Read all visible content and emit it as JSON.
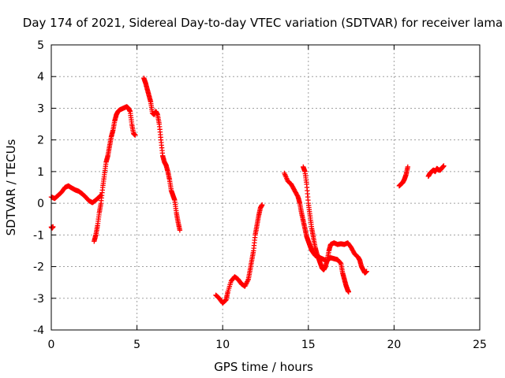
{
  "chart_data": {
    "type": "scatter",
    "title": "Day 174 of 2021, Sidereal Day-to-day VTEC variation (SDTVAR) for receiver lama",
    "xlabel": "GPS time / hours",
    "ylabel": "SDTVAR / TECUs",
    "xlim": [
      0,
      25
    ],
    "ylim": [
      -4,
      5
    ],
    "x_ticks": [
      0,
      5,
      10,
      15,
      20,
      25
    ],
    "y_ticks": [
      -4,
      -3,
      -2,
      -1,
      0,
      1,
      2,
      3,
      4,
      5
    ],
    "grid": true,
    "marker": "plus",
    "color": "#ff0000",
    "segments": [
      [
        [
          0.0,
          -0.75
        ],
        [
          0.05,
          -0.78
        ],
        [
          0.1,
          -0.74
        ]
      ],
      [
        [
          0.0,
          0.2
        ],
        [
          0.2,
          0.15
        ],
        [
          0.4,
          0.25
        ],
        [
          0.6,
          0.35
        ],
        [
          0.8,
          0.5
        ],
        [
          1.0,
          0.55
        ],
        [
          1.2,
          0.48
        ],
        [
          1.4,
          0.42
        ],
        [
          1.6,
          0.38
        ],
        [
          1.8,
          0.3
        ],
        [
          2.0,
          0.2
        ],
        [
          2.2,
          0.08
        ],
        [
          2.4,
          0.02
        ],
        [
          2.6,
          0.1
        ],
        [
          2.8,
          0.2
        ],
        [
          2.9,
          0.25
        ]
      ],
      [
        [
          2.5,
          -1.2
        ],
        [
          2.6,
          -1.0
        ],
        [
          2.7,
          -0.7
        ],
        [
          2.8,
          -0.3
        ],
        [
          2.9,
          0.0
        ],
        [
          3.0,
          0.5
        ],
        [
          3.1,
          0.9
        ],
        [
          3.2,
          1.3
        ],
        [
          3.3,
          1.5
        ],
        [
          3.4,
          1.8
        ],
        [
          3.5,
          2.1
        ],
        [
          3.6,
          2.3
        ],
        [
          3.7,
          2.6
        ],
        [
          3.8,
          2.8
        ],
        [
          3.9,
          2.9
        ],
        [
          4.0,
          2.95
        ],
        [
          4.2,
          3.0
        ],
        [
          4.4,
          3.05
        ],
        [
          4.5,
          3.0
        ],
        [
          4.6,
          2.9
        ],
        [
          4.7,
          2.5
        ],
        [
          4.8,
          2.2
        ],
        [
          4.9,
          2.15
        ]
      ],
      [
        [
          5.4,
          3.95
        ],
        [
          5.5,
          3.8
        ],
        [
          5.6,
          3.6
        ],
        [
          5.7,
          3.4
        ],
        [
          5.8,
          3.2
        ],
        [
          5.9,
          2.85
        ],
        [
          6.0,
          2.8
        ],
        [
          6.1,
          2.9
        ],
        [
          6.2,
          2.8
        ],
        [
          6.3,
          2.5
        ],
        [
          6.4,
          2.0
        ],
        [
          6.5,
          1.5
        ],
        [
          6.6,
          1.3
        ],
        [
          6.7,
          1.2
        ],
        [
          6.8,
          1.0
        ],
        [
          6.9,
          0.75
        ],
        [
          7.0,
          0.4
        ],
        [
          7.1,
          0.25
        ],
        [
          7.2,
          0.1
        ],
        [
          7.3,
          -0.3
        ],
        [
          7.4,
          -0.6
        ],
        [
          7.5,
          -0.85
        ]
      ],
      [
        [
          9.6,
          -2.9
        ],
        [
          9.8,
          -3.0
        ],
        [
          10.0,
          -3.15
        ],
        [
          10.2,
          -3.05
        ],
        [
          10.3,
          -2.8
        ],
        [
          10.5,
          -2.45
        ],
        [
          10.7,
          -2.32
        ],
        [
          10.9,
          -2.4
        ],
        [
          11.1,
          -2.55
        ],
        [
          11.3,
          -2.62
        ],
        [
          11.5,
          -2.4
        ],
        [
          11.6,
          -2.1
        ],
        [
          11.7,
          -1.8
        ],
        [
          11.8,
          -1.5
        ],
        [
          11.9,
          -1.0
        ],
        [
          12.0,
          -0.7
        ],
        [
          12.1,
          -0.4
        ],
        [
          12.2,
          -0.15
        ],
        [
          12.3,
          -0.05
        ]
      ],
      [
        [
          13.6,
          0.95
        ],
        [
          13.8,
          0.7
        ],
        [
          14.0,
          0.6
        ],
        [
          14.2,
          0.4
        ],
        [
          14.4,
          0.2
        ],
        [
          14.5,
          0.0
        ],
        [
          14.6,
          -0.3
        ],
        [
          14.7,
          -0.55
        ],
        [
          14.8,
          -0.8
        ],
        [
          14.9,
          -1.05
        ],
        [
          15.0,
          -1.2
        ],
        [
          15.1,
          -1.35
        ],
        [
          15.2,
          -1.5
        ],
        [
          15.4,
          -1.65
        ],
        [
          15.6,
          -1.7
        ],
        [
          15.8,
          -1.75
        ],
        [
          16.0,
          -1.8
        ],
        [
          16.1,
          -1.82
        ],
        [
          16.2,
          -1.75
        ],
        [
          16.3,
          -1.72
        ],
        [
          16.5,
          -1.75
        ],
        [
          16.7,
          -1.78
        ],
        [
          16.9,
          -1.9
        ],
        [
          17.0,
          -2.2
        ],
        [
          17.1,
          -2.4
        ],
        [
          17.2,
          -2.6
        ],
        [
          17.3,
          -2.75
        ],
        [
          17.35,
          -2.8
        ]
      ],
      [
        [
          14.7,
          1.15
        ],
        [
          14.8,
          1.0
        ],
        [
          14.9,
          0.6
        ],
        [
          15.0,
          0.0
        ],
        [
          15.1,
          -0.4
        ],
        [
          15.2,
          -0.8
        ],
        [
          15.3,
          -1.1
        ],
        [
          15.4,
          -1.4
        ],
        [
          15.5,
          -1.6
        ],
        [
          15.6,
          -1.75
        ],
        [
          15.7,
          -1.9
        ],
        [
          15.8,
          -2.05
        ],
        [
          15.9,
          -2.1
        ],
        [
          16.0,
          -2.0
        ],
        [
          16.1,
          -1.8
        ],
        [
          16.2,
          -1.5
        ],
        [
          16.3,
          -1.3
        ],
        [
          16.5,
          -1.25
        ],
        [
          16.7,
          -1.3
        ],
        [
          16.9,
          -1.28
        ],
        [
          17.1,
          -1.3
        ],
        [
          17.3,
          -1.25
        ],
        [
          17.5,
          -1.4
        ],
        [
          17.7,
          -1.6
        ],
        [
          17.9,
          -1.7
        ],
        [
          18.0,
          -1.8
        ],
        [
          18.1,
          -2.0
        ],
        [
          18.2,
          -2.1
        ],
        [
          18.3,
          -2.2
        ],
        [
          18.4,
          -2.15
        ]
      ],
      [
        [
          20.3,
          0.55
        ],
        [
          20.4,
          0.6
        ],
        [
          20.5,
          0.65
        ],
        [
          20.6,
          0.75
        ],
        [
          20.7,
          0.9
        ],
        [
          20.8,
          1.15
        ]
      ],
      [
        [
          22.0,
          0.85
        ],
        [
          22.1,
          0.95
        ],
        [
          22.2,
          1.0
        ],
        [
          22.3,
          1.05
        ],
        [
          22.4,
          1.0
        ],
        [
          22.5,
          1.1
        ],
        [
          22.6,
          1.05
        ],
        [
          22.7,
          1.05
        ],
        [
          22.8,
          1.12
        ],
        [
          22.9,
          1.18
        ]
      ]
    ]
  }
}
